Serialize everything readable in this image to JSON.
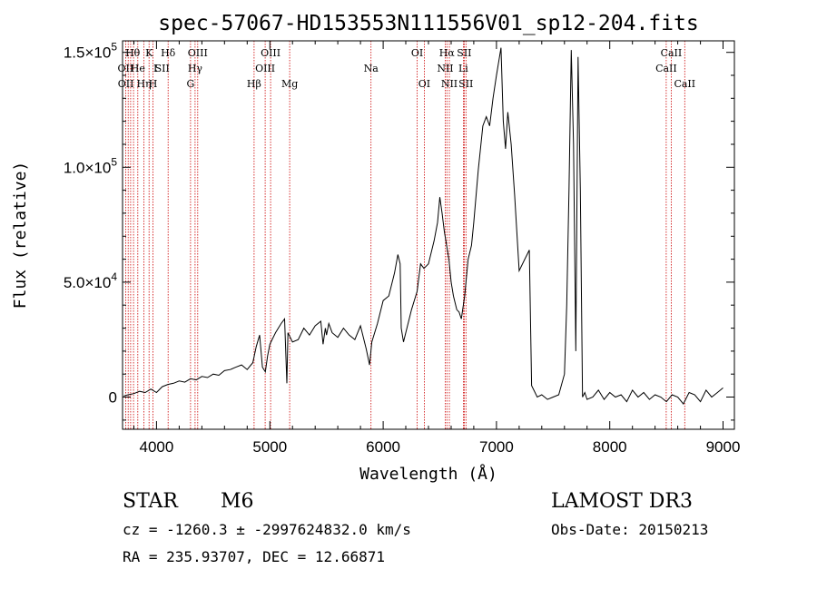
{
  "chart_data": {
    "type": "line",
    "title": "spec-57067-HD153553N111556V01_sp12-204.fits",
    "xlabel": "Wavelength (Å)",
    "ylabel": "Flux (relative)",
    "xlim": [
      3700,
      9100
    ],
    "ylim": [
      -14000,
      155000
    ],
    "x_ticks": [
      4000,
      5000,
      6000,
      7000,
      8000,
      9000
    ],
    "x_tick_labels": [
      "4000",
      "5000",
      "6000",
      "7000",
      "8000",
      "9000"
    ],
    "y_ticks": [
      0,
      50000,
      100000,
      150000
    ],
    "y_tick_labels": [
      {
        "mant": "0",
        "exp": ""
      },
      {
        "mant": "5.0×10",
        "exp": "4"
      },
      {
        "mant": "1.0×10",
        "exp": "5"
      },
      {
        "mant": "1.5×10",
        "exp": "5"
      }
    ],
    "series": [
      {
        "name": "",
        "x": [
          3710,
          3750,
          3800,
          3850,
          3900,
          3950,
          4000,
          4050,
          4100,
          4150,
          4200,
          4250,
          4300,
          4350,
          4400,
          4450,
          4500,
          4550,
          4600,
          4650,
          4700,
          4750,
          4800,
          4850,
          4880,
          4910,
          4935,
          4960,
          4980,
          5000,
          5050,
          5100,
          5130,
          5150,
          5160,
          5180,
          5200,
          5250,
          5300,
          5350,
          5400,
          5450,
          5470,
          5490,
          5500,
          5520,
          5550,
          5600,
          5650,
          5700,
          5750,
          5800,
          5850,
          5880,
          5900,
          5950,
          6000,
          6050,
          6100,
          6130,
          6150,
          6160,
          6180,
          6200,
          6250,
          6300,
          6330,
          6360,
          6400,
          6450,
          6480,
          6500,
          6520,
          6540,
          6560,
          6580,
          6600,
          6620,
          6650,
          6670,
          6690,
          6720,
          6750,
          6780,
          6800,
          6840,
          6880,
          6910,
          6940,
          6970,
          7000,
          7020,
          7040,
          7060,
          7080,
          7100,
          7130,
          7160,
          7200,
          7250,
          7290,
          7310,
          7330,
          7360,
          7400,
          7450,
          7500,
          7550,
          7600,
          7620,
          7640,
          7660,
          7680,
          7700,
          7720,
          7740,
          7760,
          7780,
          7800,
          7850,
          7900,
          7950,
          8000,
          8050,
          8100,
          8150,
          8200,
          8250,
          8300,
          8350,
          8400,
          8450,
          8500,
          8550,
          8600,
          8650,
          8700,
          8750,
          8800,
          8850,
          8900,
          8950,
          9000
        ],
        "y": [
          500,
          1000,
          1500,
          2500,
          2000,
          3500,
          2000,
          4500,
          5500,
          6000,
          7000,
          6500,
          8000,
          7500,
          9000,
          8500,
          10000,
          9500,
          11500,
          12000,
          13000,
          14000,
          12000,
          15000,
          22000,
          27000,
          13000,
          11000,
          18000,
          23000,
          28000,
          32000,
          34000,
          6000,
          28000,
          26000,
          24000,
          25000,
          30000,
          27000,
          31000,
          33000,
          23000,
          30000,
          27000,
          32000,
          28000,
          26000,
          30000,
          27000,
          25000,
          31000,
          21000,
          14000,
          24000,
          32000,
          42000,
          44000,
          54000,
          62000,
          58000,
          30000,
          24000,
          28000,
          38000,
          46000,
          58000,
          56000,
          58000,
          68000,
          76000,
          87000,
          80000,
          72000,
          66000,
          60000,
          50000,
          44000,
          38000,
          37000,
          34000,
          44000,
          60000,
          66000,
          76000,
          99000,
          118000,
          122000,
          118000,
          130000,
          140000,
          146000,
          152000,
          120000,
          108000,
          124000,
          110000,
          88000,
          55000,
          60000,
          64000,
          5000,
          3000,
          0,
          1000,
          -1000,
          0,
          1000,
          10000,
          40000,
          90000,
          151000,
          110000,
          20000,
          148000,
          90000,
          0,
          2000,
          -1000,
          0,
          3000,
          -1000,
          2000,
          0,
          1000,
          -2000,
          3000,
          0,
          2000,
          -1000,
          1000,
          0,
          -2000,
          1000,
          0,
          -3000,
          2000,
          1000,
          -2000,
          3000,
          0,
          2000,
          4000
        ]
      }
    ],
    "line_labels": [
      {
        "text": "Hθ",
        "x": 3790,
        "row": 0
      },
      {
        "text": "OII",
        "x": 3727,
        "row": 1
      },
      {
        "text": "OII",
        "x": 3729,
        "row": 2
      },
      {
        "text": "He",
        "x": 3835,
        "row": 1
      },
      {
        "text": "Hη",
        "x": 3889,
        "row": 2
      },
      {
        "text": "K",
        "x": 3934,
        "row": 0
      },
      {
        "text": "H",
        "x": 3969,
        "row": 2
      },
      {
        "text": "I",
        "x": 3990,
        "row": 1
      },
      {
        "text": "SII",
        "x": 4050,
        "row": 1
      },
      {
        "text": "Hδ",
        "x": 4102,
        "row": 0
      },
      {
        "text": "OIII",
        "x": 4363,
        "row": 0
      },
      {
        "text": "Hγ",
        "x": 4340,
        "row": 1
      },
      {
        "text": "G",
        "x": 4300,
        "row": 2
      },
      {
        "text": "OIII",
        "x": 5007,
        "row": 0
      },
      {
        "text": "OIII",
        "x": 4959,
        "row": 1
      },
      {
        "text": "Hβ",
        "x": 4861,
        "row": 2
      },
      {
        "text": "Mg",
        "x": 5175,
        "row": 2
      },
      {
        "text": "Na",
        "x": 5893,
        "row": 1
      },
      {
        "text": "OI",
        "x": 6300,
        "row": 0
      },
      {
        "text": "OI",
        "x": 6363,
        "row": 2
      },
      {
        "text": "Hα",
        "x": 6563,
        "row": 0
      },
      {
        "text": "SII",
        "x": 6716,
        "row": 0
      },
      {
        "text": "NII",
        "x": 6548,
        "row": 1
      },
      {
        "text": "Li",
        "x": 6708,
        "row": 1
      },
      {
        "text": "NII",
        "x": 6584,
        "row": 2
      },
      {
        "text": "SII",
        "x": 6731,
        "row": 2
      },
      {
        "text": "CaII",
        "x": 8542,
        "row": 0
      },
      {
        "text": "CaII",
        "x": 8498,
        "row": 1
      },
      {
        "text": "CaII",
        "x": 8662,
        "row": 2
      }
    ],
    "marker_lines": [
      3727,
      3750,
      3771,
      3797,
      3835,
      3889,
      3934,
      3969,
      4102,
      4300,
      4340,
      4363,
      4861,
      4959,
      5007,
      5175,
      5893,
      6300,
      6363,
      6548,
      6563,
      6584,
      6708,
      6716,
      6731,
      8498,
      8542,
      8662
    ],
    "grid": false,
    "legend": "none",
    "marker_color": "#cc0000"
  },
  "info": {
    "class": "STAR",
    "subclass": "M6",
    "survey": "LAMOST DR3",
    "cz": "cz = -1260.3 ± -2997624832.0 km/s",
    "obs_date": "Obs-Date: 20150213",
    "radec": "RA = 235.93707, DEC =  12.66871"
  }
}
